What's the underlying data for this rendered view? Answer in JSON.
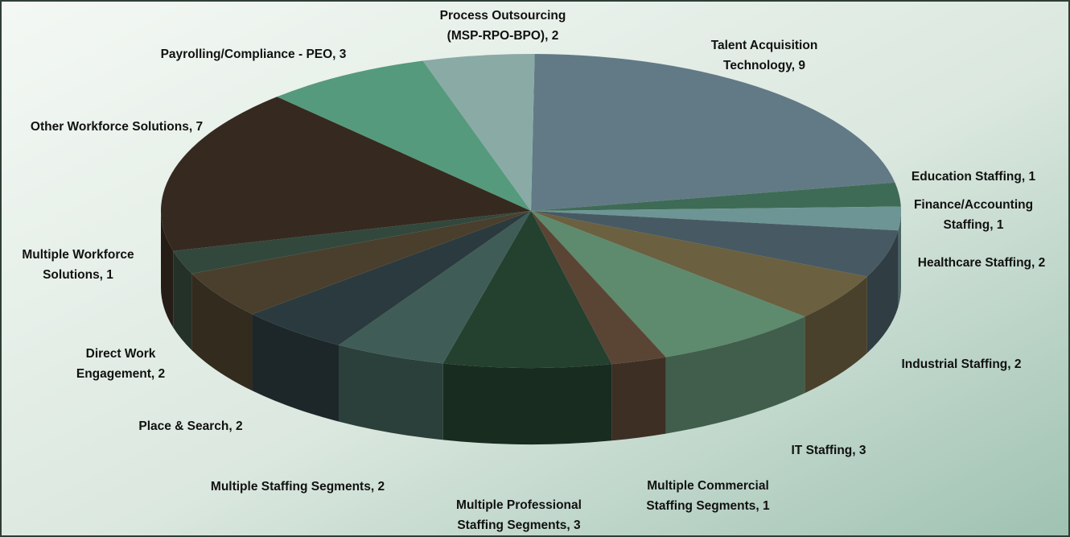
{
  "chart_data": {
    "type": "pie",
    "values": [
      9,
      1,
      1,
      2,
      2,
      3,
      1,
      3,
      2,
      2,
      2,
      1,
      7,
      3,
      2
    ],
    "value_labels": [
      [
        "Talent Acquisition",
        "Technology, 9"
      ],
      [
        "Education Staffing, 1"
      ],
      [
        "Finance/Accounting",
        "Staffing, 1"
      ],
      [
        "Healthcare Staffing, 2"
      ],
      [
        "Industrial Staffing, 2"
      ],
      [
        "IT Staffing, 3"
      ],
      [
        "Multiple Commercial",
        "Staffing Segments, 1"
      ],
      [
        "Multiple Professional",
        "Staffing Segments, 3"
      ],
      [
        "Multiple Staffing Segments, 2"
      ],
      [
        "Place & Search, 2"
      ],
      [
        "Direct Work",
        "Engagement, 2"
      ],
      [
        "Multiple Workforce",
        "Solutions, 1"
      ],
      [
        "Other Workforce Solutions, 7"
      ],
      [
        "Payrolling/Compliance - PEO, 3"
      ],
      [
        "Process Outsourcing",
        "(MSP-RPO-BPO), 2"
      ]
    ],
    "colors": [
      "#627a86",
      "#3e6b55",
      "#6e9595",
      "#475a63",
      "#6b6040",
      "#5e8a6e",
      "#5a4535",
      "#24402f",
      "#3f5c57",
      "#2b3a3e",
      "#4a3f2c",
      "#33483d",
      "#362a20",
      "#559a7c",
      "#8aaaa6"
    ]
  }
}
